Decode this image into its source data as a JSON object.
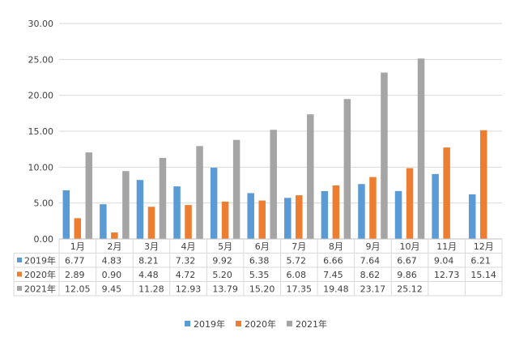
{
  "chart_data": {
    "type": "bar",
    "categories": [
      "1月",
      "2月",
      "3月",
      "4月",
      "5月",
      "6月",
      "7月",
      "8月",
      "9月",
      "10月",
      "11月",
      "12月"
    ],
    "series": [
      {
        "name": "2019年",
        "color": "#5b9bd5",
        "values": [
          6.77,
          4.83,
          8.21,
          7.32,
          9.92,
          6.38,
          5.72,
          6.66,
          7.64,
          6.67,
          9.04,
          6.21
        ],
        "labels": [
          "6.77",
          "4.83",
          "8.21",
          "7.32",
          "9.92",
          "6.38",
          "5.72",
          "6.66",
          "7.64",
          "6.67",
          "9.04",
          "6.21"
        ]
      },
      {
        "name": "2020年",
        "color": "#ed7d31",
        "values": [
          2.89,
          0.9,
          4.48,
          4.72,
          5.2,
          5.35,
          6.08,
          7.45,
          8.62,
          9.86,
          12.73,
          15.14
        ],
        "labels": [
          "2.89",
          "0.90",
          "4.48",
          "4.72",
          "5.20",
          "5.35",
          "6.08",
          "7.45",
          "8.62",
          "9.86",
          "12.73",
          "15.14"
        ]
      },
      {
        "name": "2021年",
        "color": "#a5a5a5",
        "values": [
          12.05,
          9.45,
          11.28,
          12.93,
          13.79,
          15.2,
          17.35,
          19.48,
          23.17,
          25.12,
          null,
          null
        ],
        "labels": [
          "12.05",
          "9.45",
          "11.28",
          "12.93",
          "13.79",
          "15.20",
          "17.35",
          "19.48",
          "23.17",
          "25.12",
          "",
          ""
        ]
      }
    ],
    "y_ticks": [
      "0.00",
      "5.00",
      "10.00",
      "15.00",
      "20.00",
      "25.00",
      "30.00"
    ],
    "ylim": [
      0,
      30
    ],
    "grid": true,
    "legend": "bottom",
    "data_table": true
  }
}
